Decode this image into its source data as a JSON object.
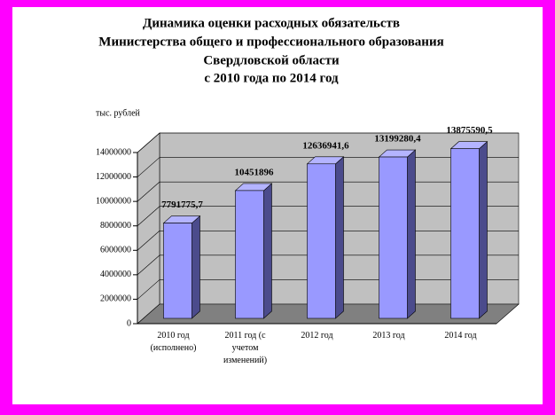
{
  "chart_data": {
    "type": "bar3d",
    "title": [
      "Динамика оценки расходных обязательств",
      "Министерства общего и профессионального образования",
      "Свердловской области",
      "с 2010 года по 2014 год"
    ],
    "y_axis_label": "тыс. рублей",
    "categories": [
      "2010 год (исполнено)",
      "2011 год (с учетом изменений)",
      "2012 год",
      "2013 год",
      "2014 год"
    ],
    "values": [
      7791775.7,
      10451896,
      12636941.6,
      13199280.4,
      13875590.5
    ],
    "value_labels": [
      "7791775,7",
      "10451896",
      "12636941,6",
      "13199280,4",
      "13875590,5"
    ],
    "color": "#9999ff",
    "ylim": [
      0,
      14000000
    ],
    "yticks": [
      0,
      2000000,
      4000000,
      6000000,
      8000000,
      10000000,
      12000000,
      14000000
    ],
    "grid": true
  }
}
